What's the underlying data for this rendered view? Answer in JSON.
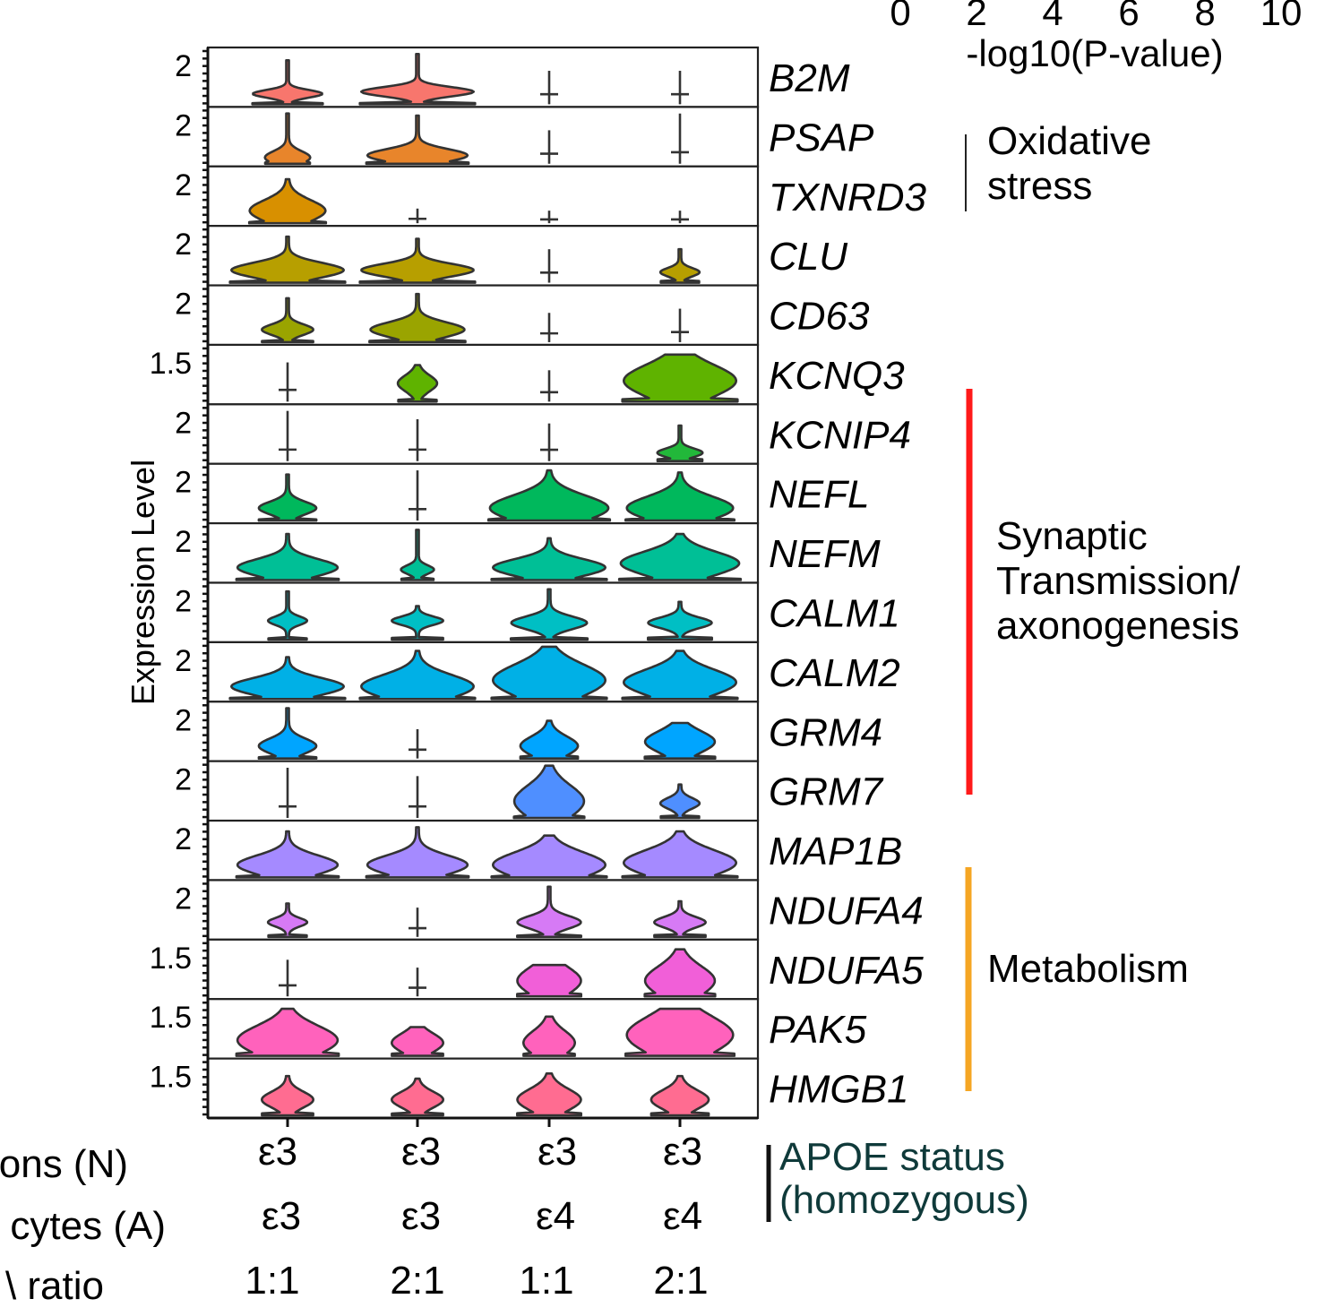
{
  "pvalue_scale": {
    "ticks": [
      "0",
      "2",
      "4",
      "6",
      "8",
      "10"
    ],
    "label": "-log10(P-value)"
  },
  "y_axis_label": "Expression Level",
  "groups": [
    {
      "name": "Oxidative stress",
      "lines": [
        "Oxidative",
        "stress"
      ],
      "color": "#222222",
      "genes": [
        "PSAP",
        "TXNRD3"
      ]
    },
    {
      "name": "Synaptic Transmission/ axonogenesis",
      "lines": [
        "Synaptic",
        "Transmission/",
        "axonogenesis"
      ],
      "color": "#ff1a1a",
      "genes": [
        "KCNIP4",
        "NEFL",
        "NEFM",
        "CALM1",
        "CALM2",
        "GRM4",
        "GRM7"
      ]
    },
    {
      "name": "Metabolism",
      "lines": [
        "Metabolism"
      ],
      "color": "#f5a623",
      "genes": [
        "NDUFA4",
        "NDUFA5",
        "PAK5",
        "HMGB1"
      ]
    }
  ],
  "conditions": {
    "rows": [
      {
        "label": "Neurons (N)",
        "visible_label": "ons (N)",
        "values": [
          "ε3",
          "ε3",
          "ε3",
          "ε3"
        ]
      },
      {
        "label": "Astrocytes (A)",
        "visible_label": "cytes (A)",
        "values": [
          "ε3",
          "ε3",
          "ε4",
          "ε4"
        ]
      },
      {
        "label": "N:A ratio",
        "visible_label": "\\ ratio",
        "values": [
          "1:1",
          "2:1",
          "1:1",
          "2:1"
        ]
      }
    ],
    "bracket_label": [
      "APOE status",
      "(homozygous)"
    ]
  },
  "chart_data": {
    "type": "violin",
    "title": "",
    "xlabel": "",
    "ylabel": "Expression Level",
    "categories": [
      "ε3/ε3 1:1",
      "ε3/ε3 2:1",
      "ε3/ε4 1:1",
      "ε3/ε4 2:1"
    ],
    "series": [
      {
        "gene": "B2M",
        "color": "#f8766d",
        "tick_label": "2",
        "ymax": 2.5,
        "violins": [
          {
            "max": 2.1,
            "mode": 0.5,
            "width": 0.55,
            "spread": 0.18
          },
          {
            "max": 2.4,
            "mode": 0.6,
            "width": 0.9,
            "spread": 0.22
          },
          {
            "max": 1.6,
            "mode": 0.0,
            "width": 0.0,
            "spread": 0
          },
          {
            "max": 1.6,
            "mode": 0.0,
            "width": 0.0,
            "spread": 0
          }
        ]
      },
      {
        "gene": "PSAP",
        "color": "#e8852b",
        "tick_label": "2",
        "ymax": 2.5,
        "violins": [
          {
            "max": 2.4,
            "mode": 0.3,
            "width": 0.35,
            "spread": 0.3
          },
          {
            "max": 2.3,
            "mode": 0.4,
            "width": 0.8,
            "spread": 0.3
          },
          {
            "max": 1.6,
            "mode": 0.0,
            "width": 0.0,
            "spread": 0
          },
          {
            "max": 2.4,
            "mode": 0.0,
            "width": 0.0,
            "spread": 0
          }
        ]
      },
      {
        "gene": "TXNRD3",
        "color": "#d89000",
        "tick_label": "2",
        "ymax": 2.5,
        "violins": [
          {
            "max": 2.1,
            "mode": 0.6,
            "width": 0.6,
            "spread": 0.5
          },
          {
            "max": 0.7,
            "mode": 0.0,
            "width": 0.0,
            "spread": 0
          },
          {
            "max": 0.6,
            "mode": 0.0,
            "width": 0.0,
            "spread": 0
          },
          {
            "max": 0.6,
            "mode": 0.0,
            "width": 0.0,
            "spread": 0
          }
        ]
      },
      {
        "gene": "CLU",
        "color": "#b79f00",
        "tick_label": "2",
        "ymax": 2.5,
        "violins": [
          {
            "max": 2.2,
            "mode": 0.6,
            "width": 0.9,
            "spread": 0.35
          },
          {
            "max": 2.1,
            "mode": 0.6,
            "width": 0.9,
            "spread": 0.3
          },
          {
            "max": 1.6,
            "mode": 0.0,
            "width": 0.0,
            "spread": 0
          },
          {
            "max": 1.6,
            "mode": 0.5,
            "width": 0.3,
            "spread": 0.2
          }
        ]
      },
      {
        "gene": "CD63",
        "color": "#9aa400",
        "tick_label": "2",
        "ymax": 2.5,
        "violins": [
          {
            "max": 2.1,
            "mode": 0.6,
            "width": 0.4,
            "spread": 0.25
          },
          {
            "max": 2.3,
            "mode": 0.6,
            "width": 0.75,
            "spread": 0.35
          },
          {
            "max": 1.4,
            "mode": 0.0,
            "width": 0.0,
            "spread": 0
          },
          {
            "max": 1.6,
            "mode": 0.0,
            "width": 0.0,
            "spread": 0
          }
        ]
      },
      {
        "gene": "KCNQ3",
        "color": "#5fb300",
        "tick_label": "1.5",
        "ymax": 2.0,
        "violins": [
          {
            "max": 1.5,
            "mode": 0.0,
            "width": 0.0,
            "spread": 0
          },
          {
            "max": 1.4,
            "mode": 0.7,
            "width": 0.3,
            "spread": 0.3
          },
          {
            "max": 1.2,
            "mode": 0.0,
            "width": 0.0,
            "spread": 0
          },
          {
            "max": 1.8,
            "mode": 0.8,
            "width": 0.9,
            "spread": 0.6
          }
        ]
      },
      {
        "gene": "KCNIP4",
        "color": "#22b83a",
        "tick_label": "2",
        "ymax": 2.5,
        "violins": [
          {
            "max": 2.4,
            "mode": 0.0,
            "width": 0.0,
            "spread": 0
          },
          {
            "max": 2.0,
            "mode": 0.0,
            "width": 0.0,
            "spread": 0
          },
          {
            "max": 1.8,
            "mode": 0.0,
            "width": 0.0,
            "spread": 0
          },
          {
            "max": 1.7,
            "mode": 0.4,
            "width": 0.35,
            "spread": 0.2
          }
        ]
      },
      {
        "gene": "NEFL",
        "color": "#00b85c",
        "tick_label": "2",
        "ymax": 2.5,
        "violins": [
          {
            "max": 2.2,
            "mode": 0.6,
            "width": 0.45,
            "spread": 0.3
          },
          {
            "max": 2.4,
            "mode": 0.0,
            "width": 0.0,
            "spread": 0
          },
          {
            "max": 2.4,
            "mode": 0.6,
            "width": 0.95,
            "spread": 0.6
          },
          {
            "max": 2.3,
            "mode": 0.6,
            "width": 0.85,
            "spread": 0.55
          }
        ]
      },
      {
        "gene": "NEFM",
        "color": "#00bf96",
        "tick_label": "2",
        "ymax": 2.5,
        "violins": [
          {
            "max": 2.2,
            "mode": 0.6,
            "width": 0.8,
            "spread": 0.4
          },
          {
            "max": 2.4,
            "mode": 0.5,
            "width": 0.25,
            "spread": 0.2
          },
          {
            "max": 2.0,
            "mode": 0.6,
            "width": 0.9,
            "spread": 0.4
          },
          {
            "max": 2.2,
            "mode": 0.8,
            "width": 0.95,
            "spread": 0.55
          }
        ]
      },
      {
        "gene": "CALM1",
        "color": "#00bfc4",
        "tick_label": "2",
        "ymax": 2.5,
        "violins": [
          {
            "max": 2.3,
            "mode": 0.9,
            "width": 0.3,
            "spread": 0.2
          },
          {
            "max": 1.6,
            "mode": 0.9,
            "width": 0.4,
            "spread": 0.2
          },
          {
            "max": 2.4,
            "mode": 0.8,
            "width": 0.6,
            "spread": 0.3
          },
          {
            "max": 1.8,
            "mode": 0.8,
            "width": 0.5,
            "spread": 0.25
          }
        ]
      },
      {
        "gene": "CALM2",
        "color": "#00b0e6",
        "tick_label": "2",
        "ymax": 2.5,
        "violins": [
          {
            "max": 2.0,
            "mode": 0.6,
            "width": 0.9,
            "spread": 0.4
          },
          {
            "max": 2.3,
            "mode": 0.6,
            "width": 0.9,
            "spread": 0.55
          },
          {
            "max": 2.5,
            "mode": 0.9,
            "width": 0.9,
            "spread": 0.75
          },
          {
            "max": 2.3,
            "mode": 0.8,
            "width": 0.9,
            "spread": 0.6
          }
        ]
      },
      {
        "gene": "GRM4",
        "color": "#00a5ff",
        "tick_label": "2",
        "ymax": 2.5,
        "violins": [
          {
            "max": 2.4,
            "mode": 0.6,
            "width": 0.45,
            "spread": 0.35
          },
          {
            "max": 1.4,
            "mode": 0.0,
            "width": 0.0,
            "spread": 0
          },
          {
            "max": 1.8,
            "mode": 0.6,
            "width": 0.45,
            "spread": 0.45
          },
          {
            "max": 1.7,
            "mode": 0.8,
            "width": 0.55,
            "spread": 0.5
          }
        ]
      },
      {
        "gene": "GRM7",
        "color": "#4f8fff",
        "tick_label": "2",
        "ymax": 2.5,
        "violins": [
          {
            "max": 2.4,
            "mode": 0.0,
            "width": 0.0,
            "spread": 0
          },
          {
            "max": 2.0,
            "mode": 0.0,
            "width": 0.0,
            "spread": 0
          },
          {
            "max": 2.5,
            "mode": 0.8,
            "width": 0.55,
            "spread": 0.75
          },
          {
            "max": 1.6,
            "mode": 0.7,
            "width": 0.3,
            "spread": 0.25
          }
        ]
      },
      {
        "gene": "MAP1B",
        "color": "#a58aff",
        "tick_label": "2",
        "ymax": 2.5,
        "violins": [
          {
            "max": 2.2,
            "mode": 0.6,
            "width": 0.8,
            "spread": 0.45
          },
          {
            "max": 2.4,
            "mode": 0.6,
            "width": 0.8,
            "spread": 0.45
          },
          {
            "max": 2.0,
            "mode": 0.6,
            "width": 0.9,
            "spread": 0.6
          },
          {
            "max": 2.2,
            "mode": 0.7,
            "width": 0.9,
            "spread": 0.6
          }
        ]
      },
      {
        "gene": "NDUFA4",
        "color": "#d67af5",
        "tick_label": "2",
        "ymax": 2.5,
        "violins": [
          {
            "max": 1.6,
            "mode": 0.7,
            "width": 0.3,
            "spread": 0.2
          },
          {
            "max": 1.4,
            "mode": 0.0,
            "width": 0.0,
            "spread": 0
          },
          {
            "max": 2.4,
            "mode": 0.7,
            "width": 0.5,
            "spread": 0.3
          },
          {
            "max": 1.7,
            "mode": 0.7,
            "width": 0.4,
            "spread": 0.25
          }
        ]
      },
      {
        "gene": "NDUFA5",
        "color": "#f15fd8",
        "tick_label": "1.5",
        "ymax": 2.0,
        "violins": [
          {
            "max": 1.4,
            "mode": 0.0,
            "width": 0.0,
            "spread": 0
          },
          {
            "max": 1.1,
            "mode": 0.0,
            "width": 0.0,
            "spread": 0
          },
          {
            "max": 1.2,
            "mode": 0.6,
            "width": 0.5,
            "spread": 0.5
          },
          {
            "max": 1.8,
            "mode": 0.6,
            "width": 0.55,
            "spread": 0.55
          }
        ]
      },
      {
        "gene": "PAK5",
        "color": "#ff62bc",
        "tick_label": "1.5",
        "ymax": 2.0,
        "violins": [
          {
            "max": 1.8,
            "mode": 0.6,
            "width": 0.8,
            "spread": 0.55
          },
          {
            "max": 1.1,
            "mode": 0.5,
            "width": 0.4,
            "spread": 0.35
          },
          {
            "max": 1.5,
            "mode": 0.5,
            "width": 0.4,
            "spread": 0.45
          },
          {
            "max": 1.8,
            "mode": 0.8,
            "width": 0.85,
            "spread": 0.7
          }
        ]
      },
      {
        "gene": "HMGB1",
        "color": "#ff6c91",
        "tick_label": "1.5",
        "ymax": 2.0,
        "violins": [
          {
            "max": 1.5,
            "mode": 0.6,
            "width": 0.4,
            "spread": 0.3
          },
          {
            "max": 1.4,
            "mode": 0.6,
            "width": 0.4,
            "spread": 0.3
          },
          {
            "max": 1.6,
            "mode": 0.6,
            "width": 0.5,
            "spread": 0.4
          },
          {
            "max": 1.5,
            "mode": 0.6,
            "width": 0.45,
            "spread": 0.35
          }
        ]
      }
    ]
  }
}
